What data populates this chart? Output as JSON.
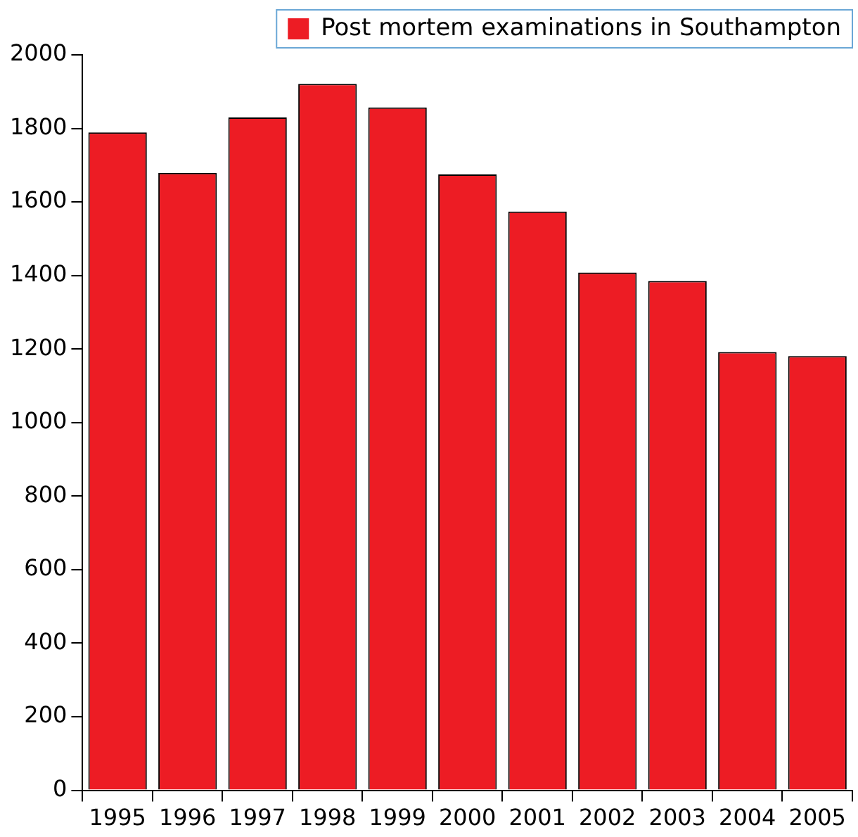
{
  "chart_data": {
    "type": "bar",
    "categories": [
      "1995",
      "1996",
      "1997",
      "1998",
      "1999",
      "2000",
      "2001",
      "2002",
      "2003",
      "2004",
      "2005"
    ],
    "series": [
      {
        "name": "Post mortem examinations in Southampton",
        "color": "#ed1c24",
        "values": [
          1789,
          1679,
          1830,
          1921,
          1857,
          1675,
          1574,
          1408,
          1385,
          1192,
          1181
        ]
      }
    ],
    "ylim": [
      0,
      2000
    ],
    "yticks": [
      0,
      200,
      400,
      600,
      800,
      1000,
      1200,
      1400,
      1600,
      1800,
      2000
    ],
    "grid": false,
    "legend": "top right"
  }
}
